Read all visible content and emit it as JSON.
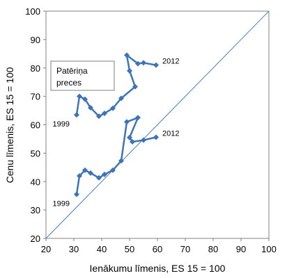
{
  "chart_data": {
    "type": "scatter",
    "xlabel": "Ienākumu līmenis, ES 15 = 100",
    "ylabel": "Cenu līmenis, ES 15 = 100",
    "xlim": [
      20,
      100
    ],
    "ylim": [
      20,
      100
    ],
    "xticks": [
      "20",
      "30",
      "40",
      "50",
      "60",
      "70",
      "80",
      "90",
      "100"
    ],
    "yticks": [
      "20",
      "30",
      "40",
      "50",
      "60",
      "70",
      "80",
      "90",
      "100"
    ],
    "grid": false,
    "legend": "none",
    "box_label_line1": "Patēriņa",
    "box_label_line2": "preces",
    "series": [
      {
        "start_label": "1999",
        "end_label": "2012",
        "color": "#3f73b8",
        "points": [
          [
            31,
            63.5
          ],
          [
            32,
            70
          ],
          [
            34,
            69
          ],
          [
            36,
            66
          ],
          [
            39,
            63
          ],
          [
            41,
            64
          ],
          [
            44,
            65.8
          ],
          [
            47,
            69.3
          ],
          [
            52,
            73.4
          ],
          [
            50,
            79
          ],
          [
            49,
            84.5
          ],
          [
            53,
            81.5
          ],
          [
            55,
            81.8
          ],
          [
            59.5,
            81
          ]
        ]
      },
      {
        "start_label": "1999",
        "end_label": "2012",
        "color": "#3f73b8",
        "points": [
          [
            31,
            35.5
          ],
          [
            32,
            42
          ],
          [
            34,
            44
          ],
          [
            36,
            43
          ],
          [
            39,
            41.3
          ],
          [
            41,
            42.5
          ],
          [
            44,
            44
          ],
          [
            47,
            47.3
          ],
          [
            49,
            61
          ],
          [
            53,
            62.5
          ],
          [
            50,
            55.5
          ],
          [
            51,
            54
          ],
          [
            55,
            54.6
          ],
          [
            59.5,
            55.6
          ]
        ]
      }
    ],
    "reference_line": {
      "from": [
        20,
        20
      ],
      "to": [
        100,
        100
      ],
      "color": "#4a7fc1"
    }
  }
}
